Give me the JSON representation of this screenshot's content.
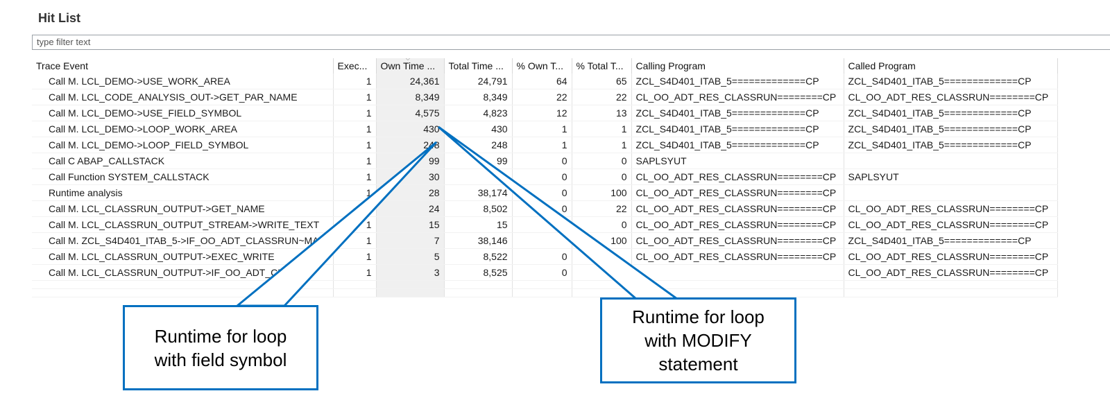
{
  "title": "Hit List",
  "filter": {
    "placeholder": "type filter text"
  },
  "columns": [
    "Trace Event",
    "Exec...",
    "Own Time ...",
    "Total Time ...",
    "% Own T...",
    "% Total T...",
    "Calling Program",
    "Called Program"
  ],
  "rows": [
    [
      "Call M.  LCL_DEMO->USE_WORK_AREA",
      "1",
      "24,361",
      "24,791",
      "64",
      "65",
      "ZCL_S4D401_ITAB_5=============CP",
      "ZCL_S4D401_ITAB_5=============CP"
    ],
    [
      "Call M.  LCL_CODE_ANALYSIS_OUT->GET_PAR_NAME",
      "1",
      "8,349",
      "8,349",
      "22",
      "22",
      "CL_OO_ADT_RES_CLASSRUN========CP",
      "CL_OO_ADT_RES_CLASSRUN========CP"
    ],
    [
      "Call M.  LCL_DEMO->USE_FIELD_SYMBOL",
      "1",
      "4,575",
      "4,823",
      "12",
      "13",
      "ZCL_S4D401_ITAB_5=============CP",
      "ZCL_S4D401_ITAB_5=============CP"
    ],
    [
      "Call M.  LCL_DEMO->LOOP_WORK_AREA",
      "1",
      "430",
      "430",
      "1",
      "1",
      "ZCL_S4D401_ITAB_5=============CP",
      "ZCL_S4D401_ITAB_5=============CP"
    ],
    [
      "Call M.  LCL_DEMO->LOOP_FIELD_SYMBOL",
      "1",
      "248",
      "248",
      "1",
      "1",
      "ZCL_S4D401_ITAB_5=============CP",
      "ZCL_S4D401_ITAB_5=============CP"
    ],
    [
      "Call C  ABAP_CALLSTACK",
      "1",
      "99",
      "99",
      "0",
      "0",
      "SAPLSYUT",
      ""
    ],
    [
      "Call Function  SYSTEM_CALLSTACK",
      "1",
      "30",
      "",
      "0",
      "0",
      "CL_OO_ADT_RES_CLASSRUN========CP",
      "SAPLSYUT"
    ],
    [
      "Runtime analysis",
      "1",
      "28",
      "38,174",
      "0",
      "100",
      "CL_OO_ADT_RES_CLASSRUN========CP",
      ""
    ],
    [
      "Call M.  LCL_CLASSRUN_OUTPUT->GET_NAME",
      "1",
      "24",
      "8,502",
      "0",
      "22",
      "CL_OO_ADT_RES_CLASSRUN========CP",
      "CL_OO_ADT_RES_CLASSRUN========CP"
    ],
    [
      "Call M.  LCL_CLASSRUN_OUTPUT_STREAM->WRITE_TEXT",
      "1",
      "15",
      "15",
      "",
      "0",
      "CL_OO_ADT_RES_CLASSRUN========CP",
      "CL_OO_ADT_RES_CLASSRUN========CP"
    ],
    [
      "Call M.  ZCL_S4D401_ITAB_5->IF_OO_ADT_CLASSRUN~MAIN",
      "1",
      "7",
      "38,146",
      "",
      "100",
      "CL_OO_ADT_RES_CLASSRUN========CP",
      "ZCL_S4D401_ITAB_5=============CP"
    ],
    [
      "Call M.  LCL_CLASSRUN_OUTPUT->EXEC_WRITE",
      "1",
      "5",
      "8,522",
      "0",
      "",
      "CL_OO_ADT_RES_CLASSRUN========CP",
      "CL_OO_ADT_RES_CLASSRUN========CP"
    ],
    [
      "Call M.  LCL_CLASSRUN_OUTPUT->IF_OO_ADT_CLA",
      "1",
      "3",
      "8,525",
      "0",
      "",
      "",
      "CL_OO_ADT_RES_CLASSRUN========CP"
    ]
  ],
  "callouts": {
    "field_symbol": [
      "Runtime for loop",
      "with field symbol"
    ],
    "modify": [
      "Runtime for loop",
      "with MODIFY",
      "statement"
    ]
  },
  "colors": {
    "accent": "#0070c0",
    "sorted_column": "#f0f0f0"
  }
}
